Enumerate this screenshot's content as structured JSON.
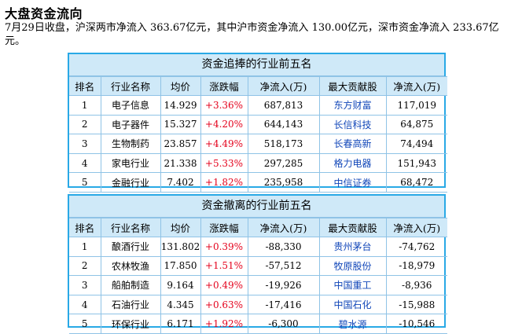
{
  "title": "大盘资金流向",
  "summary": "7月29日收盘，沪深两市净流入 363.67亿元，其中沪市资金净流入 130.00亿元，深市资金净流入 233.67亿元。",
  "colors": {
    "border": "#29a9e6",
    "header_bg": "#cfe9f8",
    "up": "#e4001b",
    "stock_link": "#1247b9"
  },
  "columns": [
    "排名",
    "行业名称",
    "均价",
    "涨跌幅",
    "净流入(万)",
    "最大贡献股",
    "净流入(万)"
  ],
  "inflow_table": {
    "title": "资金追捧的行业前五名",
    "rows": [
      {
        "rank": "1",
        "industry": "电子信息",
        "avg_price": "14.929",
        "change": "+3.36%",
        "net_inflow": "687,813",
        "top_stock": "东方财富",
        "stock_inflow": "117,019"
      },
      {
        "rank": "2",
        "industry": "电子器件",
        "avg_price": "15.327",
        "change": "+4.20%",
        "net_inflow": "644,143",
        "top_stock": "长信科技",
        "stock_inflow": "64,875"
      },
      {
        "rank": "3",
        "industry": "生物制药",
        "avg_price": "23.857",
        "change": "+4.49%",
        "net_inflow": "518,173",
        "top_stock": "长春高新",
        "stock_inflow": "74,494"
      },
      {
        "rank": "4",
        "industry": "家电行业",
        "avg_price": "21.338",
        "change": "+5.33%",
        "net_inflow": "297,285",
        "top_stock": "格力电器",
        "stock_inflow": "151,943"
      },
      {
        "rank": "5",
        "industry": "金融行业",
        "avg_price": "7.402",
        "change": "+1.82%",
        "net_inflow": "235,958",
        "top_stock": "中信证券",
        "stock_inflow": "68,472"
      }
    ]
  },
  "outflow_table": {
    "title": "资金撤离的行业前五名",
    "rows": [
      {
        "rank": "1",
        "industry": "酿酒行业",
        "avg_price": "131.802",
        "change": "+0.39%",
        "net_inflow": "-88,330",
        "top_stock": "贵州茅台",
        "stock_inflow": "-74,762"
      },
      {
        "rank": "2",
        "industry": "农林牧渔",
        "avg_price": "17.850",
        "change": "+1.51%",
        "net_inflow": "-57,512",
        "top_stock": "牧原股份",
        "stock_inflow": "-18,979"
      },
      {
        "rank": "3",
        "industry": "船舶制造",
        "avg_price": "9.164",
        "change": "+0.49%",
        "net_inflow": "-19,926",
        "top_stock": "中国重工",
        "stock_inflow": "-8,936"
      },
      {
        "rank": "4",
        "industry": "石油行业",
        "avg_price": "4.345",
        "change": "+0.63%",
        "net_inflow": "-17,416",
        "top_stock": "中国石化",
        "stock_inflow": "-15,988"
      },
      {
        "rank": "5",
        "industry": "环保行业",
        "avg_price": "6.171",
        "change": "+1.92%",
        "net_inflow": "-6,300",
        "top_stock": "碧水源",
        "stock_inflow": "-10,546"
      }
    ]
  }
}
